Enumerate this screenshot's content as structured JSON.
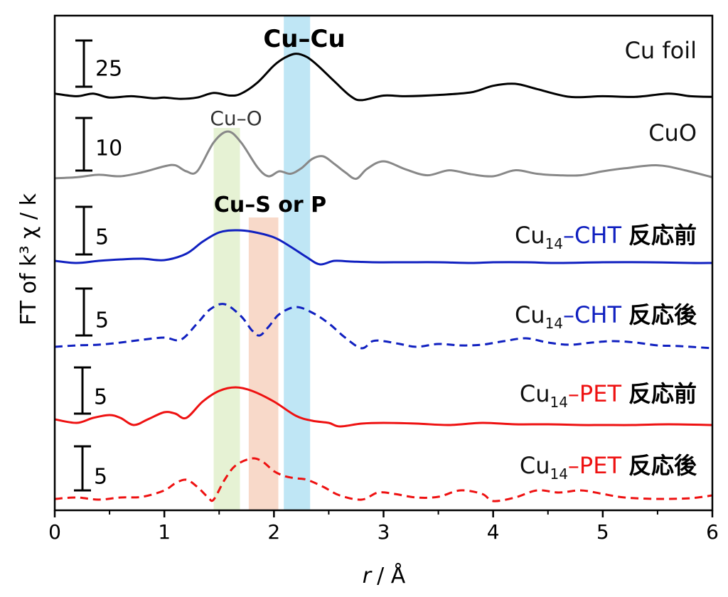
{
  "chart_data": {
    "type": "line",
    "xlabel_var": "r",
    "xlabel_unit": "/ Å",
    "ylabel": "FT of k³ χ / k",
    "xlim": [
      0,
      6
    ],
    "xticks": [
      "0",
      "1",
      "2",
      "3",
      "4",
      "5",
      "6"
    ],
    "bands": [
      {
        "label": "Cu–O",
        "x0": 1.45,
        "x1": 1.69,
        "color": "#e6f2d4"
      },
      {
        "label": "Cu–S or P",
        "x0": 1.77,
        "x1": 2.04,
        "color": "#f8d9c9"
      },
      {
        "label": "Cu–Cu",
        "x0": 2.09,
        "x1": 2.33,
        "color": "#bfe6f5"
      }
    ],
    "band_labels": {
      "cu_o": "Cu–O",
      "cu_s": "Cu–S or P",
      "cu_cu": "Cu–Cu"
    },
    "series": [
      {
        "base": "Cu foil",
        "sub": "",
        "sample": "",
        "state": "",
        "scale_label": "25",
        "color": "#000000",
        "dash": false,
        "x": [
          0,
          0.2,
          0.35,
          0.5,
          0.7,
          0.9,
          1.0,
          1.15,
          1.3,
          1.45,
          1.6,
          1.7,
          1.85,
          2.0,
          2.1,
          2.2,
          2.3,
          2.4,
          2.55,
          2.7,
          2.8,
          3.0,
          3.2,
          3.5,
          3.8,
          4.0,
          4.2,
          4.4,
          4.7,
          5.0,
          5.3,
          5.6,
          5.8,
          6.0
        ],
        "y": [
          0.09,
          0.05,
          0.09,
          0.03,
          0.05,
          0.02,
          0.03,
          0.01,
          0.03,
          0.1,
          0.06,
          0.09,
          0.26,
          0.52,
          0.64,
          0.7,
          0.65,
          0.52,
          0.28,
          0.05,
          -0.01,
          0.06,
          0.05,
          0.07,
          0.11,
          0.21,
          0.24,
          0.16,
          0.04,
          0.05,
          0.04,
          0.09,
          0.05,
          0.04
        ]
      },
      {
        "base": "CuO",
        "sub": "",
        "sample": "",
        "state": "",
        "scale_label": "10",
        "color": "#888888",
        "dash": false,
        "x": [
          0,
          0.2,
          0.4,
          0.6,
          0.8,
          1.0,
          1.1,
          1.2,
          1.3,
          1.45,
          1.58,
          1.7,
          1.85,
          1.95,
          2.05,
          2.15,
          2.25,
          2.35,
          2.45,
          2.55,
          2.65,
          2.75,
          2.85,
          3.0,
          3.2,
          3.4,
          3.6,
          3.8,
          4.0,
          4.2,
          4.4,
          4.6,
          4.8,
          5.0,
          5.2,
          5.5,
          5.75,
          6.0
        ],
        "y": [
          0.06,
          0.08,
          0.13,
          0.1,
          0.18,
          0.3,
          0.32,
          0.2,
          0.2,
          0.78,
          1.0,
          0.78,
          0.28,
          0.1,
          0.2,
          0.15,
          0.26,
          0.45,
          0.5,
          0.35,
          0.18,
          0.05,
          0.25,
          0.4,
          0.24,
          0.12,
          0.22,
          0.14,
          0.1,
          0.22,
          0.15,
          0.12,
          0.12,
          0.2,
          0.26,
          0.32,
          0.22,
          0.08
        ]
      },
      {
        "base": "Cu",
        "sub": "14",
        "sample": "–CHT",
        "state": "反応前",
        "scale_label": "5",
        "color": "#1020c0",
        "dash": false,
        "x": [
          0,
          0.2,
          0.4,
          0.6,
          0.8,
          1.0,
          1.2,
          1.35,
          1.5,
          1.65,
          1.8,
          2.0,
          2.15,
          2.3,
          2.42,
          2.55,
          2.7,
          2.9,
          3.2,
          3.5,
          3.8,
          4.0,
          4.3,
          4.6,
          5.0,
          5.4,
          5.8,
          6.0
        ],
        "y": [
          0.05,
          0.02,
          0.05,
          0.07,
          0.08,
          0.06,
          0.15,
          0.32,
          0.45,
          0.48,
          0.46,
          0.38,
          0.25,
          0.1,
          0.0,
          0.05,
          0.04,
          0.03,
          0.03,
          0.03,
          0.02,
          0.03,
          0.03,
          0.02,
          0.03,
          0.03,
          0.02,
          0.02
        ]
      },
      {
        "base": "Cu",
        "sub": "14",
        "sample": "–CHT",
        "state": "反応後",
        "scale_label": "5",
        "color": "#1020c0",
        "dash": true,
        "x": [
          0,
          0.2,
          0.4,
          0.6,
          0.8,
          1.0,
          1.15,
          1.3,
          1.42,
          1.55,
          1.7,
          1.8,
          1.87,
          1.95,
          2.05,
          2.2,
          2.35,
          2.5,
          2.65,
          2.8,
          2.9,
          3.0,
          3.15,
          3.3,
          3.5,
          3.7,
          3.9,
          4.1,
          4.3,
          4.5,
          4.7,
          4.9,
          5.1,
          5.3,
          5.5,
          5.7,
          6.0
        ],
        "y": [
          0.02,
          0.04,
          0.05,
          0.08,
          0.12,
          0.15,
          0.12,
          0.35,
          0.55,
          0.62,
          0.45,
          0.25,
          0.18,
          0.3,
          0.48,
          0.58,
          0.5,
          0.35,
          0.15,
          0.0,
          0.1,
          0.1,
          0.06,
          0.02,
          0.06,
          0.04,
          0.05,
          0.1,
          0.14,
          0.08,
          0.05,
          0.08,
          0.1,
          0.08,
          0.04,
          0.03,
          0.0
        ]
      },
      {
        "base": "Cu",
        "sub": "14",
        "sample": "–PET",
        "state": "反応前",
        "scale_label": "5",
        "color": "#ee1111",
        "dash": false,
        "x": [
          0,
          0.2,
          0.35,
          0.5,
          0.6,
          0.72,
          0.85,
          1.0,
          1.1,
          1.2,
          1.35,
          1.5,
          1.65,
          1.8,
          2.0,
          2.2,
          2.35,
          2.5,
          2.6,
          2.8,
          3.0,
          3.3,
          3.6,
          3.9,
          4.2,
          4.5,
          4.8,
          5.0,
          5.3,
          5.6,
          6.0
        ],
        "y": [
          0.1,
          0.05,
          0.12,
          0.16,
          0.12,
          0.02,
          0.1,
          0.2,
          0.18,
          0.12,
          0.35,
          0.5,
          0.55,
          0.5,
          0.35,
          0.15,
          0.08,
          0.05,
          0.0,
          0.04,
          0.05,
          0.04,
          0.02,
          0.05,
          0.03,
          0.03,
          0.02,
          0.02,
          0.02,
          0.03,
          0.02
        ]
      },
      {
        "base": "Cu",
        "sub": "14",
        "sample": "–PET",
        "state": "反応後",
        "scale_label": "5",
        "color": "#ee1111",
        "dash": true,
        "x": [
          0,
          0.2,
          0.4,
          0.6,
          0.8,
          1.0,
          1.1,
          1.2,
          1.3,
          1.4,
          1.45,
          1.55,
          1.65,
          1.8,
          1.9,
          2.0,
          2.1,
          2.2,
          2.3,
          2.45,
          2.6,
          2.8,
          2.95,
          3.1,
          3.3,
          3.5,
          3.7,
          3.9,
          4.0,
          4.2,
          4.4,
          4.6,
          4.8,
          5.0,
          5.2,
          5.5,
          5.8,
          6.0
        ],
        "y": [
          0.03,
          0.05,
          0.02,
          0.05,
          0.06,
          0.15,
          0.25,
          0.3,
          0.2,
          0.05,
          0.02,
          0.3,
          0.5,
          0.6,
          0.55,
          0.42,
          0.35,
          0.32,
          0.3,
          0.2,
          0.08,
          0.02,
          0.12,
          0.1,
          0.05,
          0.06,
          0.15,
          0.1,
          0.0,
          0.05,
          0.15,
          0.12,
          0.15,
          0.1,
          0.05,
          0.03,
          0.04,
          0.08
        ]
      }
    ]
  }
}
